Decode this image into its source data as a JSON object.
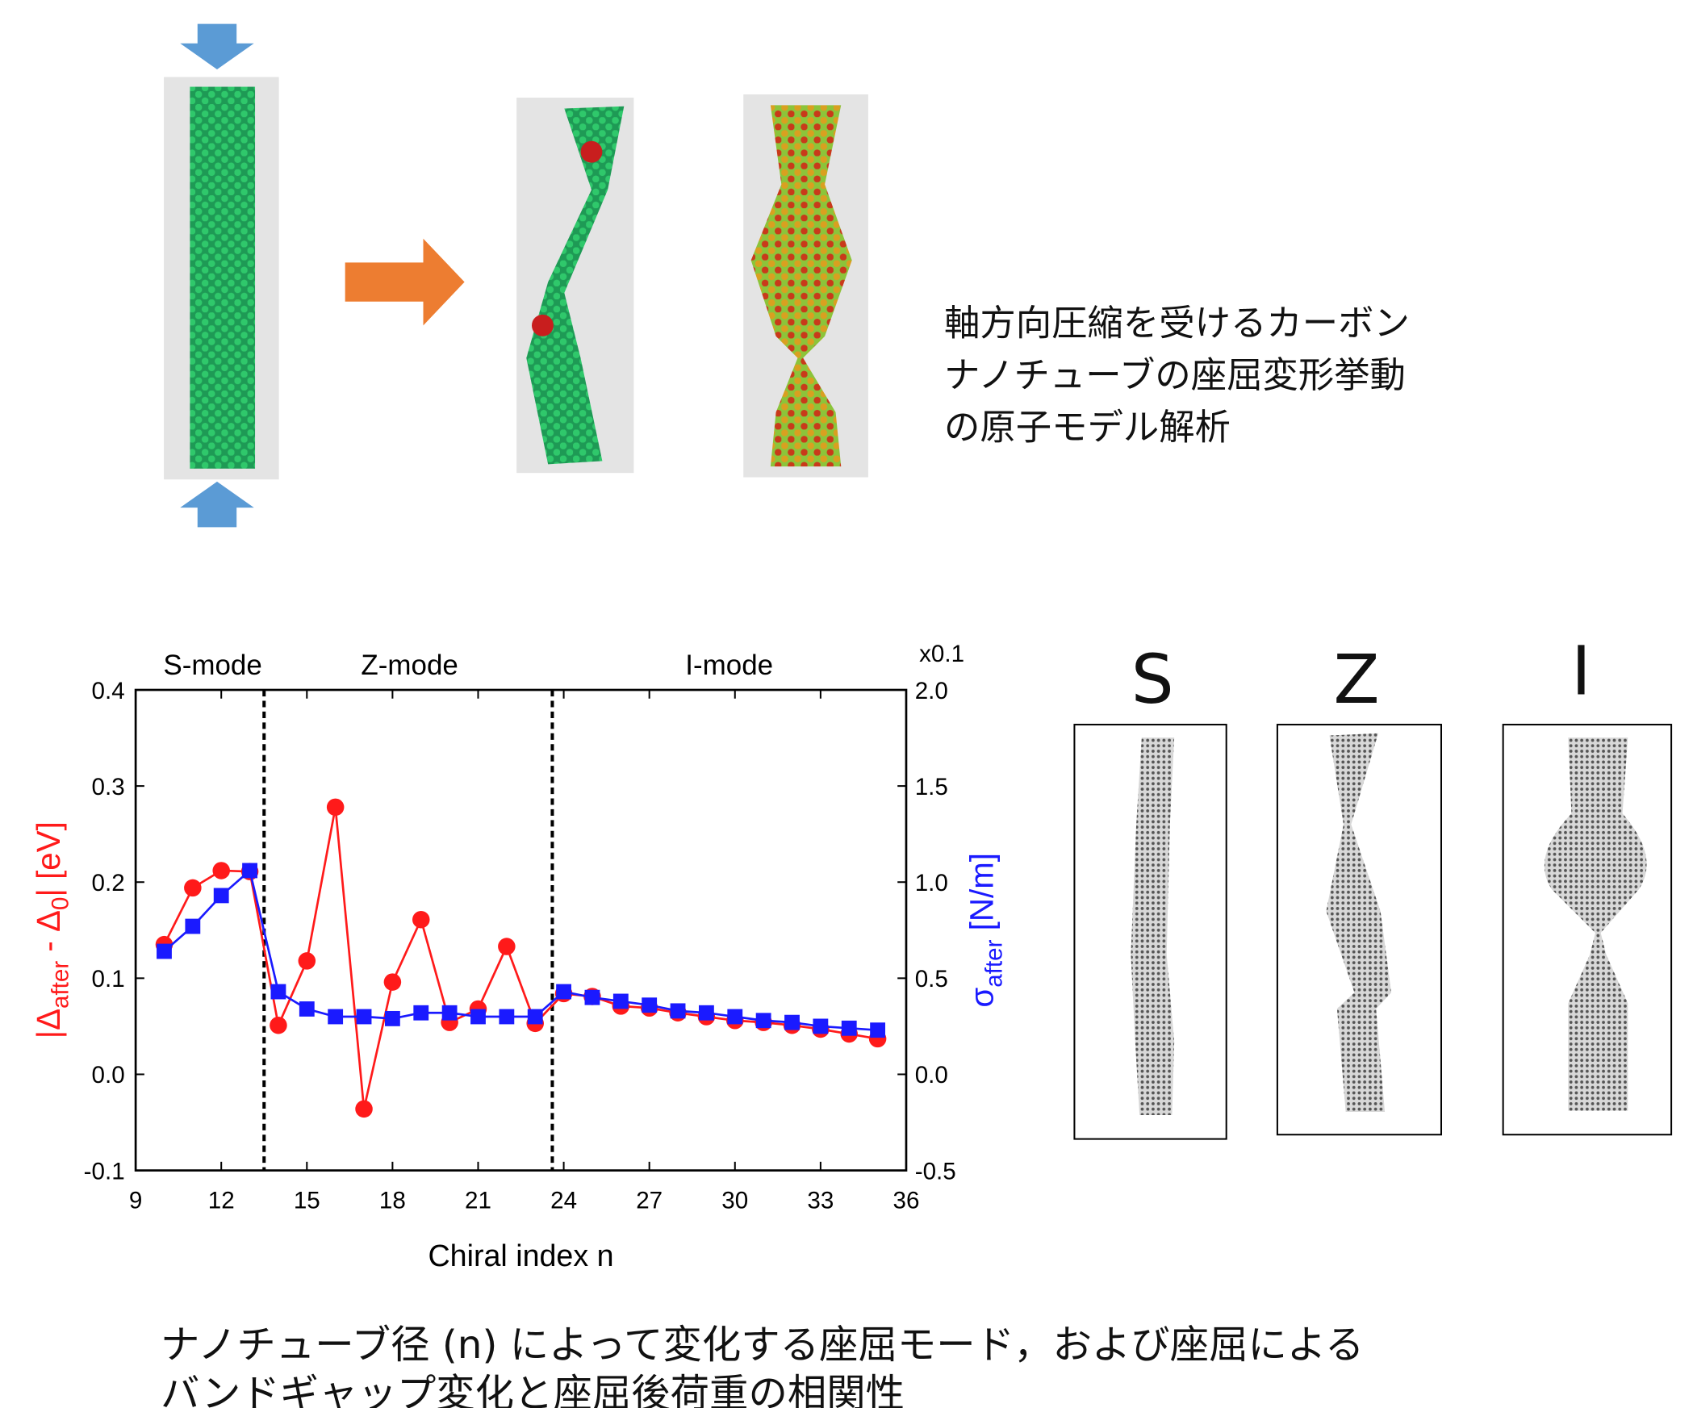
{
  "description": [
    "軸方向圧縮を受けるカーボン",
    "ナノチューブの座屈変形挙動",
    "の原子モデル解析"
  ],
  "mode_images": [
    "S",
    "Z",
    "I"
  ],
  "caption": [
    "ナノチューブ径 (n) によって変化する座屈モード，および座屈による",
    "バンドギャップ変化と座屈後荷重の相関性"
  ],
  "chart_data": {
    "type": "line",
    "xlabel": "Chiral index n",
    "ylabel": [
      "|Δ",
      "after",
      " - Δ",
      "0",
      "| [eV]"
    ],
    "y2label": [
      "σ",
      "after",
      " [N/m]"
    ],
    "y2_multiplier": "x0.1",
    "annotations": [
      {
        "text": "S-mode",
        "x": 11.7
      },
      {
        "text": "Z-mode",
        "x": 18.6
      },
      {
        "text": "I-mode",
        "x": 29.8
      }
    ],
    "boundaries": [
      13.5,
      23.6
    ],
    "xlim": [
      9,
      36
    ],
    "xticks": [
      9,
      12,
      15,
      18,
      21,
      24,
      27,
      30,
      33,
      36
    ],
    "ylim": [
      -0.1,
      0.4
    ],
    "yticks": [
      -0.1,
      {
        "value": 0,
        "label": "0.0"
      },
      0.1,
      0.2,
      0.3,
      0.4
    ],
    "y2lim": [
      -0.5,
      2.0
    ],
    "y2ticks": [
      -0.5,
      {
        "value": 0,
        "label": "0.0"
      },
      0.5,
      {
        "value": 1,
        "label": "1.0"
      },
      1.5,
      {
        "value": 2,
        "label": "2.0"
      }
    ],
    "x": [
      10,
      11,
      12,
      13,
      14,
      15,
      16,
      17,
      18,
      19,
      20,
      21,
      22,
      23,
      24,
      25,
      26,
      27,
      28,
      29,
      30,
      31,
      32,
      33,
      34,
      35
    ],
    "series": [
      {
        "color": "#ff1a1a",
        "marker": "circle",
        "axis": "y",
        "values": [
          0.135,
          0.194,
          0.212,
          0.211,
          0.051,
          0.118,
          0.278,
          -0.036,
          0.096,
          0.161,
          0.054,
          0.068,
          0.133,
          0.053,
          0.084,
          0.081,
          0.071,
          0.069,
          0.064,
          0.06,
          0.056,
          0.054,
          0.051,
          0.047,
          0.042,
          0.037
        ]
      },
      {
        "color": "#1a1aff",
        "marker": "square",
        "axis": "y2",
        "values": [
          0.64,
          0.77,
          0.93,
          1.06,
          0.43,
          0.34,
          0.3,
          0.3,
          0.29,
          0.32,
          0.32,
          0.3,
          0.3,
          0.3,
          0.43,
          0.4,
          0.38,
          0.36,
          0.33,
          0.32,
          0.3,
          0.28,
          0.27,
          0.25,
          0.24,
          0.23
        ]
      }
    ]
  }
}
